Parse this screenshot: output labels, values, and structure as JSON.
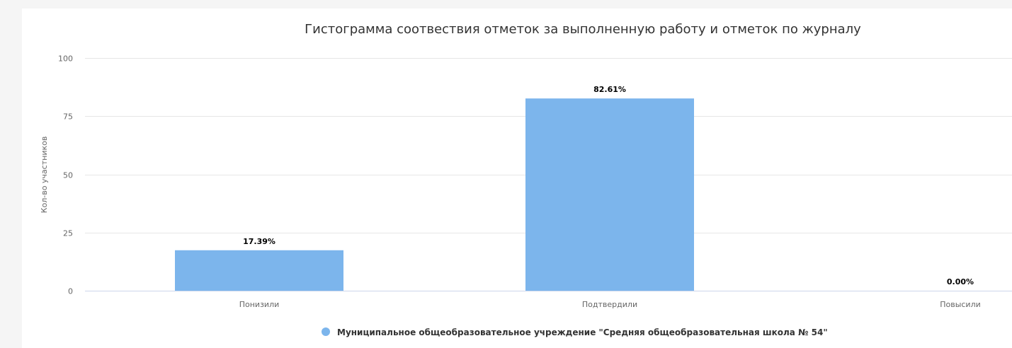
{
  "chart_data": {
    "type": "bar",
    "title": "Гистограмма соотвествия отметок за выполненную работу и отметок по журналу",
    "ylabel": "Кол-во участников",
    "xlabel": "",
    "categories": [
      "Понизили",
      "Подтвердили",
      "Повысили"
    ],
    "yticks": [
      "0",
      "25",
      "50",
      "75",
      "100"
    ],
    "ylim": [
      0,
      100
    ],
    "grid": true,
    "legend_position": "bottom-center",
    "series": [
      {
        "name": "Муниципальное общеобразовательное учреждение \"Средняя общеобразовательная школа № 54\"",
        "values": [
          17.39,
          82.61,
          0.0
        ],
        "labels": [
          "17.39%",
          "82.61%",
          "0.00%"
        ],
        "color": "#7cb5ec"
      }
    ]
  }
}
